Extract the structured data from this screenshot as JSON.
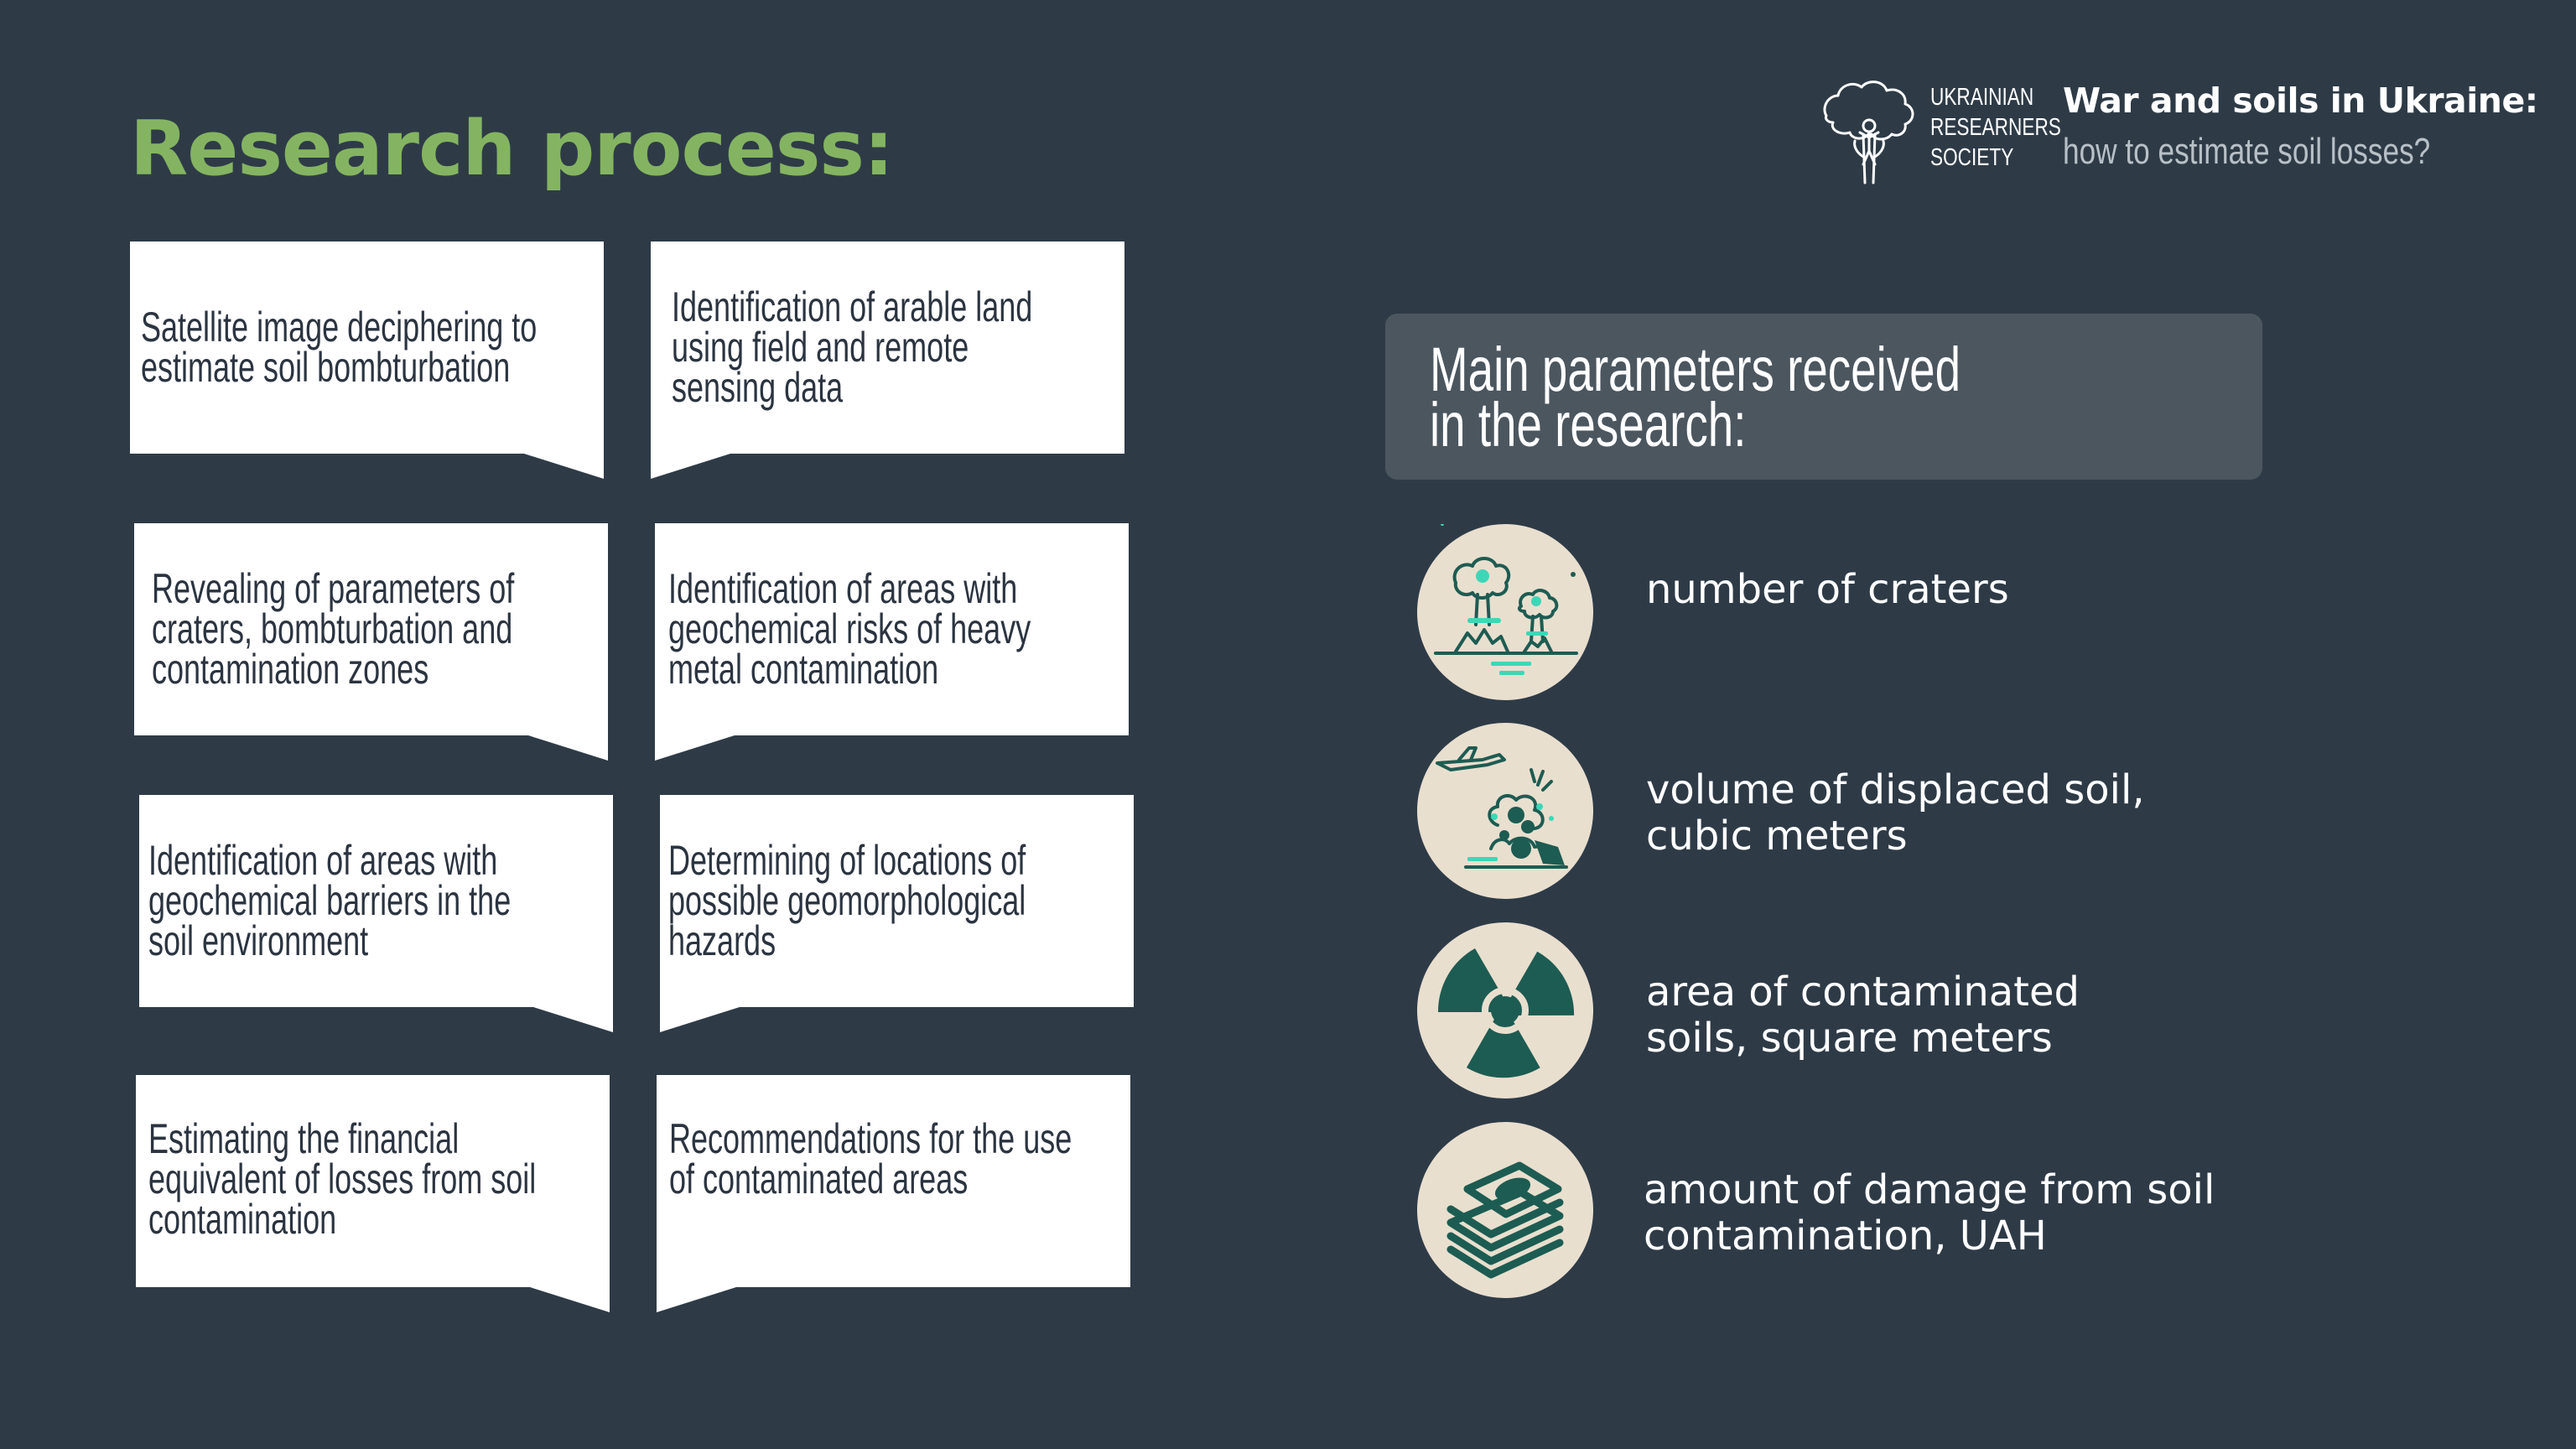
{
  "title": "Research process:",
  "header": {
    "society_lines": [
      "UKRAINIAN",
      "RESEARNERS",
      "SOCIETY"
    ],
    "title": "War and soils in Ukraine:",
    "subtitle": "how to estimate soil losses?"
  },
  "steps": [
    {
      "lines": [
        "Satellite image deciphering to",
        "estimate soil bombturbation"
      ]
    },
    {
      "lines": [
        "Identification of arable land",
        "using field and remote",
        "sensing data"
      ]
    },
    {
      "lines": [
        "Revealing of parameters of",
        "craters, bombturbation and",
        "contamination zones"
      ]
    },
    {
      "lines": [
        "Identification of areas with",
        "geochemical risks of heavy",
        "metal contamination"
      ]
    },
    {
      "lines": [
        "Identification of areas with",
        "geochemical barriers in the",
        "soil environment"
      ]
    },
    {
      "lines": [
        "Determining of locations of",
        "possible geomorphological",
        "hazards"
      ]
    },
    {
      "lines": [
        "Estimating the financial",
        "equivalent of losses from soil",
        "contamination"
      ]
    },
    {
      "lines": [
        "Recommendations for the use",
        "of contaminated areas"
      ]
    }
  ],
  "params_panel": {
    "lines": [
      "Main parameters received",
      "in the research:"
    ]
  },
  "params": [
    {
      "icon": "craters-icon",
      "lines": [
        "number of craters"
      ]
    },
    {
      "icon": "displaced-soil-icon",
      "lines": [
        "volume of displaced soil,",
        "cubic meters"
      ]
    },
    {
      "icon": "radiation-icon",
      "lines": [
        "area of contaminated",
        "soils, square meters"
      ]
    },
    {
      "icon": "money-stack-icon",
      "lines": [
        "amount of damage from soil",
        "contamination, UAH"
      ]
    }
  ],
  "colors": {
    "background": "#2e3b47",
    "title": "#84b461",
    "panel": "#4b565f",
    "icon_bg": "#e9dfcf",
    "icon_dark": "#1d5c52",
    "icon_accent": "#3fd6b8"
  }
}
